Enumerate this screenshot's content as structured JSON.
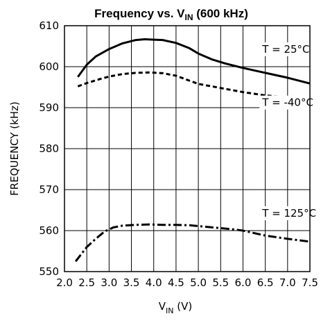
{
  "chart_data": {
    "type": "line",
    "title": "Frequency vs. V",
    "title_sub": "IN",
    "title_suffix": " (600 kHz)",
    "xlabel": "V",
    "xlabel_sub": "IN",
    "xlabel_suffix": "  (V)",
    "ylabel": "FREQUENCY (kHz)",
    "xlim": [
      2.0,
      7.5
    ],
    "ylim": [
      550,
      610
    ],
    "x_ticks": [
      2.0,
      2.5,
      3.0,
      3.5,
      4.0,
      4.5,
      5.0,
      5.5,
      6.0,
      6.5,
      7.0,
      7.5
    ],
    "x_tick_labels": [
      "2.0",
      "2.5",
      "3.0",
      "3.5",
      "4.0",
      "4.5",
      "5.0",
      "5.5",
      "6.0",
      "6.5",
      "7.0",
      "7.5"
    ],
    "y_ticks": [
      550,
      560,
      570,
      580,
      590,
      600,
      610
    ],
    "y_tick_labels": [
      "550",
      "560",
      "570",
      "580",
      "590",
      "600",
      "610"
    ],
    "grid": true,
    "series": [
      {
        "name": "T = 25°C",
        "style": "solid",
        "x": [
          2.3,
          2.5,
          2.7,
          3.0,
          3.3,
          3.6,
          3.8,
          4.0,
          4.2,
          4.5,
          4.8,
          5.0,
          5.3,
          5.6,
          6.0,
          6.5,
          7.0,
          7.5
        ],
        "y": [
          597.5,
          600.5,
          602.5,
          604.3,
          605.7,
          606.5,
          606.7,
          606.6,
          606.5,
          605.8,
          604.5,
          603.2,
          601.8,
          600.8,
          599.7,
          598.5,
          597.3,
          595.9
        ]
      },
      {
        "name": "T = -40°C",
        "style": "dashed",
        "x": [
          2.3,
          2.5,
          2.8,
          3.0,
          3.3,
          3.6,
          3.9,
          4.2,
          4.5,
          4.8,
          5.0,
          5.3,
          5.6,
          6.0,
          6.5,
          7.0,
          7.5
        ],
        "y": [
          595.2,
          596.0,
          597.0,
          597.6,
          598.2,
          598.5,
          598.6,
          598.4,
          597.8,
          596.6,
          595.8,
          595.2,
          594.6,
          593.8,
          593.0,
          592.4,
          592.1
        ]
      },
      {
        "name": "T = 125°C",
        "style": "dashdot",
        "x": [
          2.25,
          2.5,
          2.7,
          2.9,
          3.1,
          3.3,
          3.6,
          3.9,
          4.2,
          4.5,
          4.8,
          5.1,
          5.4,
          5.7,
          6.0,
          6.5,
          7.0,
          7.5
        ],
        "y": [
          552.5,
          556.0,
          558.0,
          559.8,
          560.8,
          561.2,
          561.4,
          561.5,
          561.4,
          561.4,
          561.3,
          561.0,
          560.7,
          560.4,
          560.0,
          558.8,
          558.0,
          557.3
        ]
      }
    ],
    "annotations": [
      {
        "label": "T = 25°C",
        "x": 6.4,
        "y": 603.4
      },
      {
        "label": "T = -40°C",
        "x": 6.4,
        "y": 590.4
      },
      {
        "label": "T = 125°C",
        "x": 6.4,
        "y": 563.4
      }
    ]
  }
}
